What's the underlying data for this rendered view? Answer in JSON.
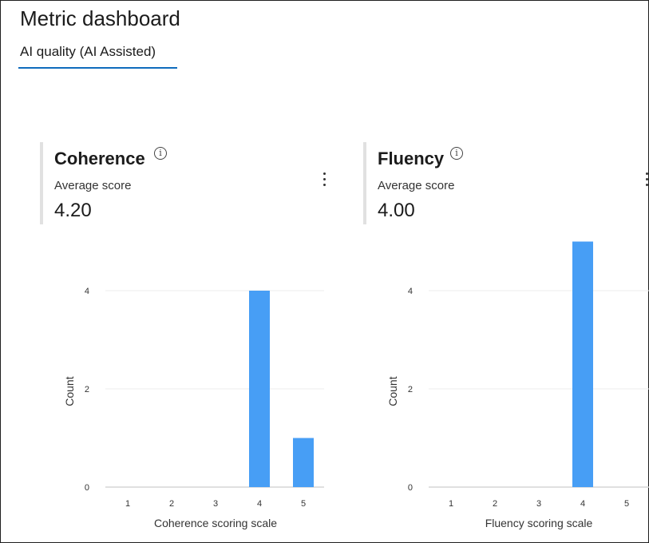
{
  "page": {
    "title": "Metric dashboard"
  },
  "tabs": [
    {
      "label": "AI quality (AI Assisted)",
      "active": true
    }
  ],
  "cards": [
    {
      "title": "Coherence",
      "subtitle": "Average score",
      "score": "4.20",
      "chart_data": {
        "type": "bar",
        "categories": [
          "1",
          "2",
          "3",
          "4",
          "5"
        ],
        "values": [
          0,
          0,
          0,
          4,
          1
        ],
        "xlabel": "Coherence scoring scale",
        "ylabel": "Count",
        "yticks": [
          "0",
          "2",
          "4"
        ],
        "ylim": [
          0,
          4.8
        ],
        "grid": true,
        "color": "#479ef5"
      }
    },
    {
      "title": "Fluency",
      "subtitle": "Average score",
      "score": "4.00",
      "chart_data": {
        "type": "bar",
        "categories": [
          "1",
          "2",
          "3",
          "4",
          "5"
        ],
        "values": [
          0,
          0,
          0,
          5,
          0
        ],
        "xlabel": "Fluency scoring scale",
        "ylabel": "Count",
        "yticks": [
          "0",
          "2",
          "4"
        ],
        "ylim": [
          0,
          5
        ],
        "grid": true,
        "color": "#479ef5"
      }
    }
  ],
  "colors": {
    "accent": "#0f6cbd",
    "bar": "#479ef5",
    "card_bar": "#e1e1e1"
  }
}
